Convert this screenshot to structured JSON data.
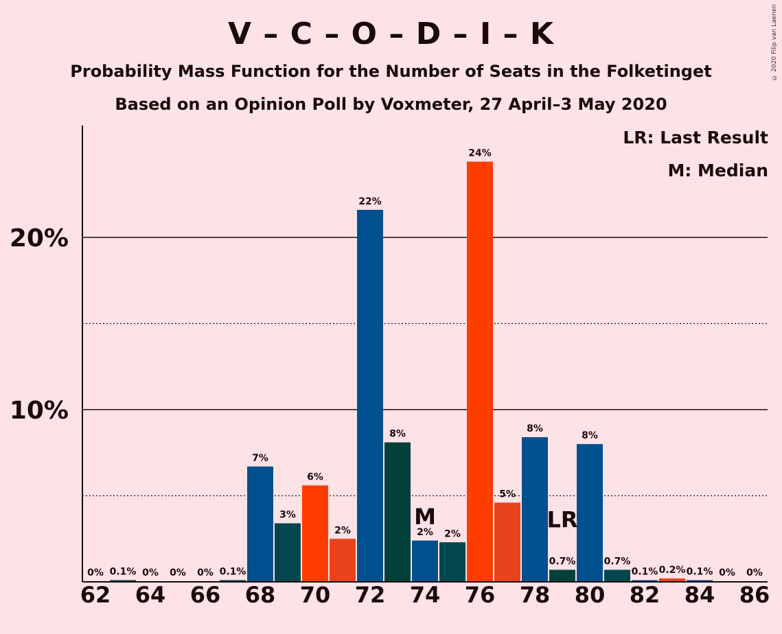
{
  "title": "V – C – O – D – I – K",
  "subtitle": "Probability Mass Function for the Number of Seats in the Folketinget",
  "subtitle2": "Based on an Opinion Poll by Voxmeter, 27 April–3 May 2020",
  "copyright": "© 2020 Filip van Laenen",
  "legend": {
    "last_result": "LR: Last Result",
    "median": "M: Median"
  },
  "colors": {
    "background": "#fde3e6",
    "blue": "#00508f",
    "teal": "#03464f",
    "red": "#ff3d00",
    "orange_red": "#e8431a",
    "dark_green": "#024139"
  },
  "chart_data": {
    "type": "bar",
    "x": [
      62,
      63,
      64,
      65,
      66,
      67,
      68,
      69,
      70,
      71,
      72,
      73,
      74,
      75,
      76,
      77,
      78,
      79,
      80,
      81,
      82,
      83,
      84,
      85,
      86
    ],
    "values": [
      0,
      0.1,
      0,
      0,
      0,
      0.1,
      6.7,
      3.4,
      5.6,
      2.5,
      21.6,
      8.1,
      2.4,
      2.3,
      24.4,
      4.6,
      8.4,
      0.7,
      8.0,
      0.7,
      0.1,
      0.2,
      0.1,
      0,
      0
    ],
    "labels": [
      "0%",
      "0.1%",
      "0%",
      "0%",
      "0%",
      "0.1%",
      "7%",
      "3%",
      "6%",
      "2%",
      "22%",
      "8%",
      "2%",
      "2%",
      "24%",
      "5%",
      "8%",
      "0.7%",
      "8%",
      "0.7%",
      "0.1%",
      "0.2%",
      "0.1%",
      "0%",
      "0%"
    ],
    "bar_colors": [
      "#00508f",
      "#03464f",
      "#ff3d00",
      "#e8431a",
      "#00508f",
      "#03464f",
      "#00508f",
      "#03464f",
      "#ff3d00",
      "#e8431a",
      "#00508f",
      "#024139",
      "#00508f",
      "#03464f",
      "#ff3d00",
      "#e8431a",
      "#00508f",
      "#024139",
      "#00508f",
      "#03464f",
      "#00508f",
      "#e8431a",
      "#00508f",
      "#03464f",
      "#00508f"
    ],
    "x_ticks": [
      62,
      64,
      66,
      68,
      70,
      72,
      74,
      76,
      78,
      80,
      82,
      84,
      86
    ],
    "y_ticks": [
      {
        "value": 10,
        "label": "10%"
      },
      {
        "value": 20,
        "label": "20%"
      }
    ],
    "y_minor_gridlines": [
      5,
      15
    ],
    "ylim": [
      0,
      26.5
    ],
    "median_seat": 74,
    "median_label": "M",
    "last_result_seat": 79,
    "last_result_label": "LR"
  }
}
